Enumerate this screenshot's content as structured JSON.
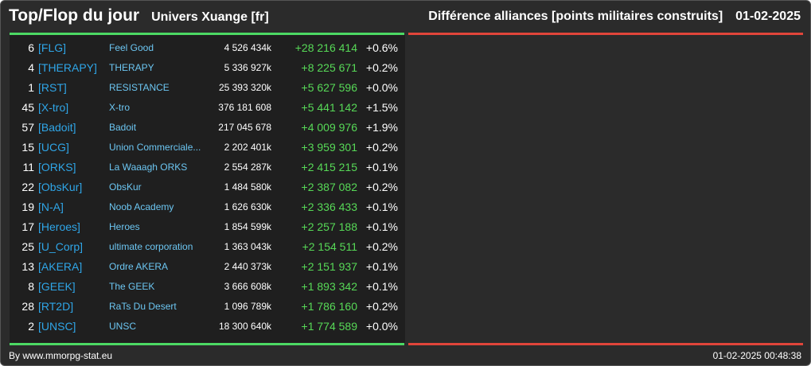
{
  "header": {
    "title": "Top/Flop du jour",
    "subtitle": "Univers Xuange [fr]",
    "metric": "Différence alliances [points militaires construits]",
    "date": "01-02-2025"
  },
  "colors": {
    "accent_top": "#4cd964",
    "accent_flop": "#e0453a",
    "tag": "#2fa6e8",
    "name": "#6cc6f2",
    "positive": "#57d957"
  },
  "top_list": {
    "rows": [
      {
        "rank": "6",
        "tag": "[FLG]",
        "name": "Feel Good",
        "points": "4 526 434k",
        "diff": "+28 216 414",
        "pct": "+0.6%"
      },
      {
        "rank": "4",
        "tag": "[THERAPY]",
        "name": "THERAPY",
        "points": "5 336 927k",
        "diff": "+8 225 671",
        "pct": "+0.2%"
      },
      {
        "rank": "1",
        "tag": "[RST]",
        "name": "RESISTANCE",
        "points": "25 393 320k",
        "diff": "+5 627 596",
        "pct": "+0.0%"
      },
      {
        "rank": "45",
        "tag": "[X-tro]",
        "name": "X-tro",
        "points": "376 181 608",
        "diff": "+5 441 142",
        "pct": "+1.5%"
      },
      {
        "rank": "57",
        "tag": "[Badoit]",
        "name": "Badoit",
        "points": "217 045 678",
        "diff": "+4 009 976",
        "pct": "+1.9%"
      },
      {
        "rank": "15",
        "tag": "[UCG]",
        "name": "Union Commerciale...",
        "points": "2 202 401k",
        "diff": "+3 959 301",
        "pct": "+0.2%"
      },
      {
        "rank": "11",
        "tag": "[ORKS]",
        "name": "La Waaagh ORKS",
        "points": "2 554 287k",
        "diff": "+2 415 215",
        "pct": "+0.1%"
      },
      {
        "rank": "22",
        "tag": "[ObsKur]",
        "name": "ObsKur",
        "points": "1 484 580k",
        "diff": "+2 387 082",
        "pct": "+0.2%"
      },
      {
        "rank": "19",
        "tag": "[N-A]",
        "name": "Noob Academy",
        "points": "1 626 630k",
        "diff": "+2 336 433",
        "pct": "+0.1%"
      },
      {
        "rank": "17",
        "tag": "[Heroes]",
        "name": "Heroes",
        "points": "1 854 599k",
        "diff": "+2 257 188",
        "pct": "+0.1%"
      },
      {
        "rank": "25",
        "tag": "[U_Corp]",
        "name": "ultimate corporation",
        "points": "1 363 043k",
        "diff": "+2 154 511",
        "pct": "+0.2%"
      },
      {
        "rank": "13",
        "tag": "[AKERA]",
        "name": "Ordre AKERA",
        "points": "2 440 373k",
        "diff": "+2 151 937",
        "pct": "+0.1%"
      },
      {
        "rank": "8",
        "tag": "[GEEK]",
        "name": "The GEEK",
        "points": "3 666 608k",
        "diff": "+1 893 342",
        "pct": "+0.1%"
      },
      {
        "rank": "28",
        "tag": "[RT2D]",
        "name": "RaTs Du Desert",
        "points": "1 096 789k",
        "diff": "+1 786 160",
        "pct": "+0.2%"
      },
      {
        "rank": "2",
        "tag": "[UNSC]",
        "name": "UNSC",
        "points": "18 300 640k",
        "diff": "+1 774 589",
        "pct": "+0.0%"
      }
    ]
  },
  "footer": {
    "credit": "By www.mmorpg-stat.eu",
    "timestamp": "01-02-2025 00:48:38"
  }
}
